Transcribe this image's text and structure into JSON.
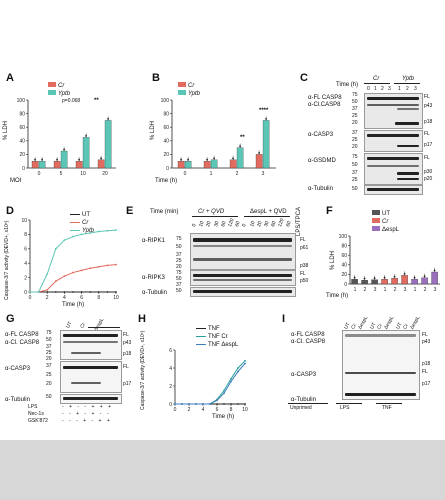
{
  "panels": {
    "A": {
      "label": "A",
      "legend": [
        "Cr",
        "Yptb"
      ],
      "ylabel": "% LDH",
      "xlabel": "MOI",
      "yticks": [
        "0",
        "20",
        "40",
        "60",
        "80",
        "100"
      ],
      "pval": "p=0.068",
      "sig": "**"
    },
    "B": {
      "label": "B",
      "legend": [
        "Cr",
        "Yptb"
      ],
      "ylabel": "% LDH",
      "xlabel": "Time (h)",
      "yticks": [
        "0",
        "20",
        "40",
        "60",
        "80",
        "100"
      ],
      "sig1": "**",
      "sig2": "****"
    },
    "C": {
      "label": "C",
      "header": "Time (h)",
      "group1": "Cr",
      "group2": "Yptb",
      "times": [
        "0",
        "1",
        "2",
        "3",
        "1",
        "2",
        "3"
      ],
      "rows": [
        "α-FL CASP8",
        "α-Cl.CASP8",
        "α-CASP3",
        "α-GSDMD",
        "α-Tubulin"
      ],
      "bands": [
        "FL",
        "p43",
        "p18",
        "FL",
        "p17",
        "FL",
        "p30",
        "p20"
      ],
      "mw": [
        "75",
        "50",
        "37",
        "25",
        "20",
        "37",
        "25",
        "20",
        "75",
        "50",
        "37",
        "25",
        "50"
      ]
    },
    "D": {
      "label": "D",
      "ylabel": "Caspase-3/7 activity (DEVD+, x10⁵)",
      "xlabel": "Time (h)",
      "legend": [
        "UT",
        "Cr",
        "Yptb"
      ],
      "yticks": [
        "0",
        "2",
        "4",
        "6",
        "8",
        "10"
      ],
      "xticks": [
        "0",
        "2",
        "4",
        "6",
        "8",
        "10"
      ]
    },
    "E": {
      "label": "E",
      "header1": "Cr + QVD",
      "header2": "ΔespL + QVD",
      "header3": "LPS/TPCA",
      "time_label": "Time (min)",
      "times": [
        "0",
        "10",
        "20",
        "30",
        "60",
        "120",
        "60",
        "0",
        "10",
        "20",
        "30",
        "60",
        "120",
        "60"
      ],
      "rows": [
        "α-RIPK1",
        "α-RIPK3",
        "α-Tubulin"
      ],
      "bands": [
        "FL",
        "p61",
        "p38",
        "FL",
        "p50"
      ],
      "mw": [
        "75",
        "50",
        "37",
        "25",
        "20",
        "75",
        "50",
        "37",
        "50"
      ]
    },
    "F": {
      "label": "F",
      "ylabel": "% LDH",
      "xlabel": "Time (h)",
      "legend": [
        "UT",
        "Cr",
        "ΔespL"
      ],
      "yticks": [
        "0",
        "20",
        "40",
        "60",
        "80",
        "100"
      ]
    },
    "G": {
      "label": "G",
      "lanes": [
        "UT",
        "Cr",
        "ΔespL"
      ],
      "rows": [
        "α-FL CASP8",
        "α-Cl. CASP8",
        "α-CASP3",
        "α-Tubulin"
      ],
      "bands": [
        "FL",
        "p43",
        "p18",
        "FL",
        "p17"
      ],
      "treatments": [
        {
          "name": "LPS",
          "marks": "- + - - + + +"
        },
        {
          "name": "Nec-1s",
          "marks": "- - + - + - -"
        },
        {
          "name": "GSK'872",
          "marks": "- - - + - + +"
        }
      ],
      "mw": [
        "75",
        "50",
        "37",
        "25",
        "20",
        "37",
        "25",
        "20",
        "50"
      ]
    },
    "H": {
      "label": "H",
      "ylabel": "Caspase-3/7 activity (DEVD+, x10⁵)",
      "xlabel": "Time (h)",
      "legend": [
        "TNF",
        "TNF Cr",
        "TNF ΔespL"
      ],
      "yticks": [
        "0",
        "2",
        "4",
        "6"
      ],
      "xticks": [
        "0",
        "2",
        "4",
        "6",
        "8",
        "10"
      ]
    },
    "I": {
      "label": "I",
      "rows": [
        "α-FL CASP8",
        "α-Cl. CASP8",
        "α-CASP3",
        "α-Tubulin"
      ],
      "lanes": [
        "UT",
        "Cr",
        "ΔespL"
      ],
      "bands": [
        "FL",
        "p43",
        "p18",
        "FL",
        "p17"
      ],
      "groups": [
        "Unprimed",
        "LPS",
        "TNF"
      ]
    }
  },
  "chart_data": [
    {
      "type": "bar",
      "panel": "A",
      "categories": [
        "0",
        "5",
        "10",
        "20"
      ],
      "series": [
        {
          "name": "Cr",
          "values": [
            10,
            10,
            10,
            12
          ]
        },
        {
          "name": "Yptb",
          "values": [
            10,
            25,
            45,
            70
          ]
        }
      ],
      "xlabel": "MOI",
      "ylabel": "% LDH",
      "ylim": [
        0,
        100
      ]
    },
    {
      "type": "bar",
      "panel": "B",
      "categories": [
        "0",
        "1",
        "2",
        "3"
      ],
      "series": [
        {
          "name": "Cr",
          "values": [
            10,
            10,
            12,
            20
          ]
        },
        {
          "name": "Yptb",
          "values": [
            10,
            12,
            30,
            70
          ]
        }
      ],
      "xlabel": "Time (h)",
      "ylabel": "% LDH",
      "ylim": [
        0,
        100
      ]
    },
    {
      "type": "line",
      "panel": "D",
      "x": [
        0,
        1,
        2,
        3,
        4,
        5,
        6,
        7,
        8,
        9,
        10
      ],
      "series": [
        {
          "name": "UT",
          "values": [
            0,
            0,
            0,
            0,
            0,
            0,
            0,
            0,
            0,
            0,
            0
          ]
        },
        {
          "name": "Cr",
          "values": [
            0,
            0,
            0.3,
            1.5,
            2.2,
            2.7,
            3.0,
            3.3,
            3.5,
            3.7,
            3.8
          ]
        },
        {
          "name": "Yptb",
          "values": [
            0,
            0,
            2.5,
            6.0,
            7.2,
            7.7,
            8.0,
            8.2,
            8.4,
            8.5,
            8.6
          ]
        }
      ],
      "xlabel": "Time (h)",
      "ylabel": "Caspase-3/7 activity (DEVD+, x10⁵)",
      "ylim": [
        0,
        10
      ]
    },
    {
      "type": "bar",
      "panel": "F",
      "categories": [
        "1",
        "2",
        "3",
        "1",
        "2",
        "3",
        "1",
        "2",
        "3"
      ],
      "series": [
        {
          "name": "UT",
          "values": [
            10,
            8,
            9,
            null,
            null,
            null,
            null,
            null,
            null
          ]
        },
        {
          "name": "Cr",
          "values": [
            null,
            null,
            null,
            10,
            12,
            18,
            null,
            null,
            null
          ]
        },
        {
          "name": "ΔespL",
          "values": [
            null,
            null,
            null,
            null,
            null,
            null,
            10,
            13,
            25
          ]
        }
      ],
      "xlabel": "Time (h)",
      "ylabel": "% LDH",
      "ylim": [
        0,
        100
      ]
    },
    {
      "type": "line",
      "panel": "H",
      "x": [
        0,
        1,
        2,
        3,
        4,
        5,
        6,
        7,
        8,
        9,
        10
      ],
      "series": [
        {
          "name": "TNF",
          "values": [
            0,
            0,
            0,
            0,
            0,
            0,
            0,
            0,
            0,
            0,
            0
          ]
        },
        {
          "name": "TNF Cr",
          "values": [
            0,
            0,
            0,
            0,
            0,
            0,
            0.5,
            1.5,
            2.8,
            4.0,
            4.8
          ]
        },
        {
          "name": "TNF ΔespL",
          "values": [
            0,
            0,
            0,
            0,
            0,
            0,
            0.4,
            1.2,
            2.5,
            3.6,
            4.5
          ]
        }
      ],
      "xlabel": "Time (h)",
      "ylabel": "Caspase-3/7 activity (DEVD+, x10⁵)",
      "ylim": [
        0,
        6
      ]
    }
  ],
  "colors": {
    "cr": "#e06b5e",
    "yptb": "#5cc6b6",
    "ut": "#555555",
    "espl": "#9a6fbd",
    "tnf_cr": "#2aa198",
    "tnf_espl": "#3b7dbf",
    "dark": "#222222"
  }
}
